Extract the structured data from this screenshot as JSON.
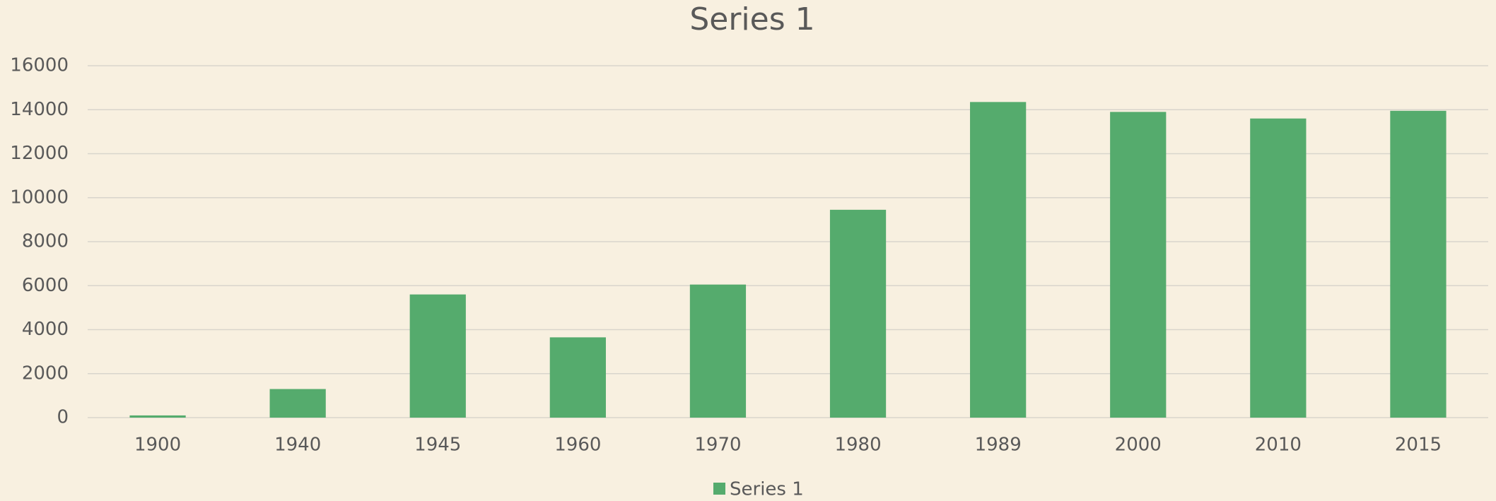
{
  "chart_data": {
    "type": "bar",
    "title": "Series 1",
    "categories": [
      "1900",
      "1940",
      "1945",
      "1960",
      "1970",
      "1980",
      "1989",
      "2000",
      "2010",
      "2015"
    ],
    "series": [
      {
        "name": "Series 1",
        "color": "#55ab6d",
        "values": [
          100,
          1300,
          5600,
          3650,
          6050,
          9450,
          14350,
          13900,
          13600,
          13950
        ]
      }
    ],
    "ylim": [
      0,
      16000
    ],
    "yticks": [
      0,
      2000,
      4000,
      6000,
      8000,
      10000,
      12000,
      14000,
      16000
    ],
    "grid": true,
    "legend": "bottom"
  }
}
